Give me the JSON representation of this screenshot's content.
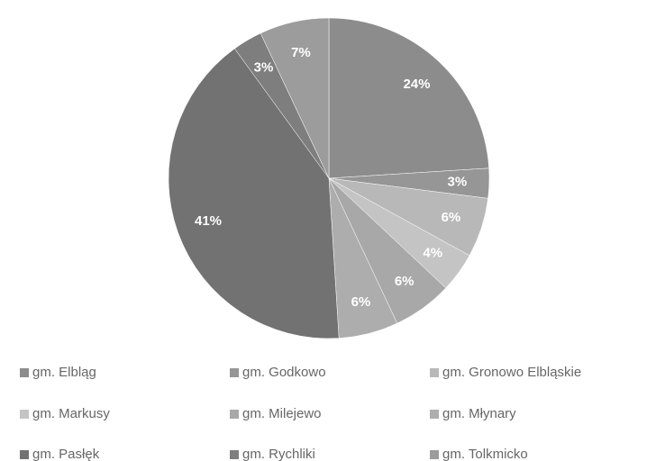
{
  "chart_data": {
    "type": "pie",
    "categories": [
      "gm. Elbląg",
      "gm. Godkowo",
      "gm. Gronowo Elbląskie",
      "gm. Markusy",
      "gm. Milejewo",
      "gm. Młynary",
      "gm. Pasłęk",
      "gm. Rychliki",
      "gm. Tolkmicko"
    ],
    "values": [
      24,
      3,
      6,
      4,
      6,
      6,
      41,
      3,
      7
    ],
    "value_labels": [
      "24%",
      "3%",
      "6%",
      "4%",
      "6%",
      "6%",
      "41%",
      "3%",
      "7%"
    ],
    "colors": [
      "#8c8c8c",
      "#969696",
      "#b8b8b8",
      "#c4c4c4",
      "#a8a8a8",
      "#adadad",
      "#727272",
      "#7e7e7e",
      "#9c9c9c"
    ],
    "legend": "bottom"
  }
}
